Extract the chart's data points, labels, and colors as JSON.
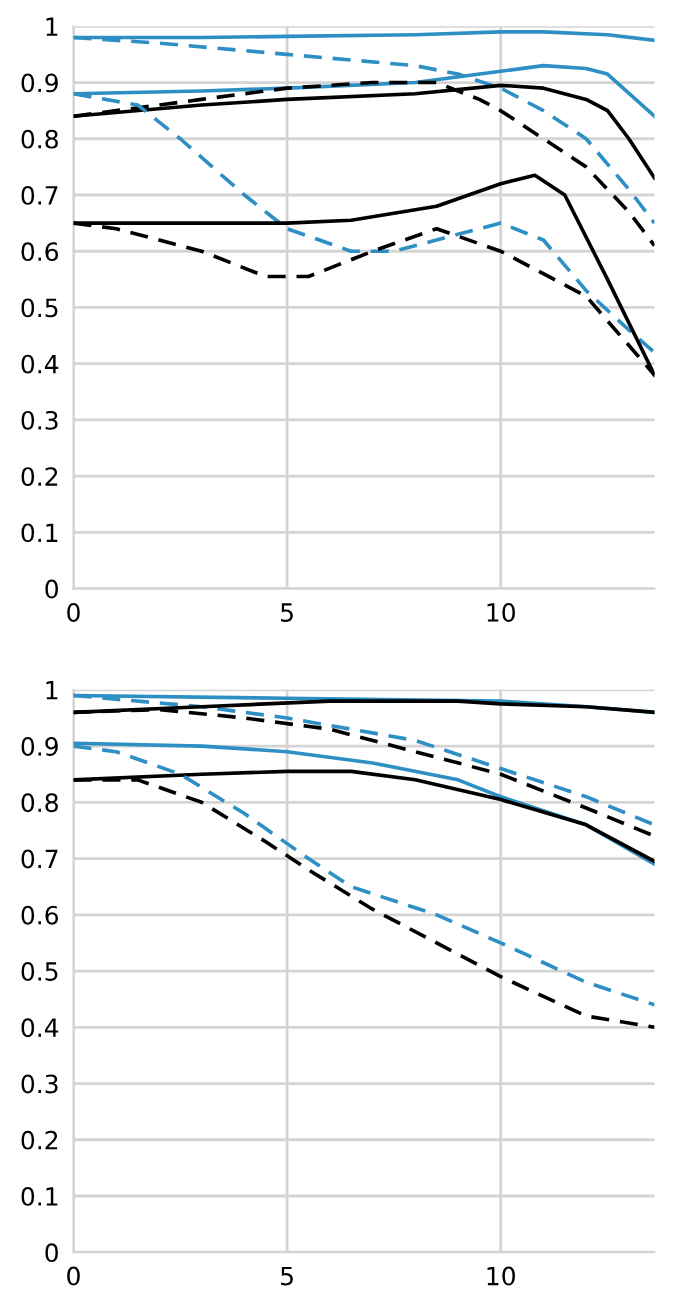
{
  "chart_data": [
    {
      "type": "line",
      "xlim": [
        0,
        13.6
      ],
      "ylim": [
        0,
        1
      ],
      "xticks": [
        0,
        5,
        10
      ],
      "yticks": [
        0,
        0.1,
        0.2,
        0.3,
        0.4,
        0.5,
        0.6,
        0.7,
        0.8,
        0.9,
        1
      ],
      "grid": true,
      "legend": false,
      "series": [
        {
          "color": "#2e8fc4",
          "line_style": "solid",
          "x": [
            0,
            3,
            5,
            8,
            10,
            11,
            12.5,
            13.6
          ],
          "values": [
            0.98,
            0.98,
            0.982,
            0.985,
            0.99,
            0.99,
            0.985,
            0.975
          ]
        },
        {
          "color": "#2e8fc4",
          "line_style": "dashed",
          "x": [
            0,
            2,
            5,
            8,
            9,
            10,
            11,
            12,
            13,
            13.6
          ],
          "values": [
            0.98,
            0.97,
            0.95,
            0.93,
            0.915,
            0.89,
            0.85,
            0.8,
            0.71,
            0.65
          ]
        },
        {
          "color": "#2e8fc4",
          "line_style": "solid",
          "x": [
            0,
            3,
            5,
            8,
            10,
            11,
            12,
            12.5,
            13.6
          ],
          "values": [
            0.88,
            0.885,
            0.89,
            0.9,
            0.92,
            0.93,
            0.925,
            0.915,
            0.84
          ]
        },
        {
          "color": "#000000",
          "line_style": "solid",
          "x": [
            0,
            3,
            5,
            8,
            10,
            11,
            12,
            12.5,
            13,
            13.6
          ],
          "values": [
            0.84,
            0.86,
            0.87,
            0.88,
            0.895,
            0.89,
            0.87,
            0.85,
            0.8,
            0.73
          ]
        },
        {
          "color": "#000000",
          "line_style": "dashed",
          "x": [
            0,
            3,
            5,
            7,
            8.5,
            9.5,
            10,
            11,
            12,
            13,
            13.6
          ],
          "values": [
            0.84,
            0.87,
            0.89,
            0.9,
            0.9,
            0.87,
            0.85,
            0.8,
            0.75,
            0.67,
            0.61
          ]
        },
        {
          "color": "#2e8fc4",
          "line_style": "dashed",
          "x": [
            0,
            1.5,
            2.5,
            4,
            5,
            6.5,
            7.5,
            9,
            10,
            11,
            12,
            13,
            13.6
          ],
          "values": [
            0.88,
            0.86,
            0.8,
            0.7,
            0.64,
            0.6,
            0.6,
            0.63,
            0.65,
            0.62,
            0.53,
            0.46,
            0.42
          ]
        },
        {
          "color": "#000000",
          "line_style": "solid",
          "x": [
            0,
            2,
            5,
            6.5,
            8.5,
            10,
            10.8,
            11.5,
            12.5,
            13.6
          ],
          "values": [
            0.65,
            0.65,
            0.65,
            0.655,
            0.68,
            0.72,
            0.735,
            0.7,
            0.55,
            0.38
          ]
        },
        {
          "color": "#000000",
          "line_style": "dashed",
          "x": [
            0,
            1,
            3,
            4.5,
            5.5,
            7,
            8.5,
            10,
            12,
            13.6
          ],
          "values": [
            0.65,
            0.64,
            0.6,
            0.555,
            0.555,
            0.6,
            0.64,
            0.6,
            0.52,
            0.38
          ]
        }
      ]
    },
    {
      "type": "line",
      "xlim": [
        0,
        13.6
      ],
      "ylim": [
        0,
        1
      ],
      "xticks": [
        0,
        5,
        10
      ],
      "yticks": [
        0,
        0.1,
        0.2,
        0.3,
        0.4,
        0.5,
        0.6,
        0.7,
        0.8,
        0.9,
        1
      ],
      "grid": true,
      "legend": false,
      "series": [
        {
          "color": "#2e8fc4",
          "line_style": "solid",
          "x": [
            0,
            5,
            10,
            12,
            13.6
          ],
          "values": [
            0.99,
            0.985,
            0.98,
            0.97,
            0.96
          ]
        },
        {
          "color": "#2e8fc4",
          "line_style": "dashed",
          "x": [
            0,
            3,
            5,
            8,
            10,
            12,
            13.6
          ],
          "values": [
            0.99,
            0.97,
            0.95,
            0.91,
            0.86,
            0.81,
            0.76
          ]
        },
        {
          "color": "#000000",
          "line_style": "dashed",
          "x": [
            0,
            2,
            4,
            6,
            8,
            10,
            12,
            13.6
          ],
          "values": [
            0.96,
            0.965,
            0.95,
            0.93,
            0.89,
            0.85,
            0.79,
            0.74
          ]
        },
        {
          "color": "#000000",
          "line_style": "solid",
          "x": [
            0,
            3,
            6,
            9,
            10,
            12,
            13.6
          ],
          "values": [
            0.96,
            0.97,
            0.98,
            0.98,
            0.975,
            0.97,
            0.96
          ]
        },
        {
          "color": "#2e8fc4",
          "line_style": "solid",
          "x": [
            0,
            3,
            5,
            7,
            9,
            10,
            12,
            13.6
          ],
          "values": [
            0.905,
            0.9,
            0.89,
            0.87,
            0.84,
            0.81,
            0.76,
            0.69
          ]
        },
        {
          "color": "#000000",
          "line_style": "solid",
          "x": [
            0,
            3,
            5,
            6.5,
            8,
            10,
            12,
            13.6
          ],
          "values": [
            0.84,
            0.85,
            0.855,
            0.855,
            0.84,
            0.805,
            0.76,
            0.695
          ]
        },
        {
          "color": "#2e8fc4",
          "line_style": "dashed",
          "x": [
            0,
            1,
            2.5,
            4,
            5.5,
            6.5,
            8.5,
            10,
            12,
            13.6
          ],
          "values": [
            0.9,
            0.89,
            0.85,
            0.78,
            0.7,
            0.65,
            0.6,
            0.55,
            0.48,
            0.44
          ]
        },
        {
          "color": "#000000",
          "line_style": "dashed",
          "x": [
            0,
            1.5,
            3,
            4.5,
            5.5,
            7,
            8.5,
            10,
            12,
            13.6
          ],
          "values": [
            0.84,
            0.84,
            0.8,
            0.73,
            0.68,
            0.61,
            0.55,
            0.49,
            0.42,
            0.4
          ]
        }
      ]
    }
  ]
}
